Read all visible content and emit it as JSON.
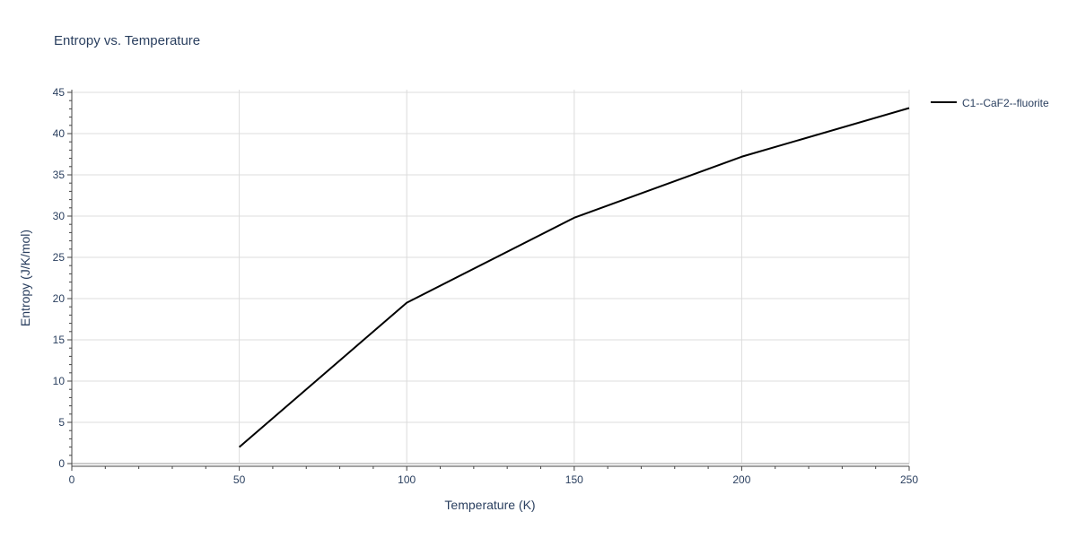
{
  "chart_data": {
    "type": "line",
    "title": "Entropy vs. Temperature",
    "xlabel": "Temperature (K)",
    "ylabel": "Entropy (J/K/mol)",
    "xlim": [
      0,
      250
    ],
    "ylim": [
      0,
      45
    ],
    "x_ticks": [
      0,
      50,
      100,
      150,
      200,
      250
    ],
    "y_ticks": [
      0,
      5,
      10,
      15,
      20,
      25,
      30,
      35,
      40,
      45
    ],
    "grid": true,
    "legend_position": "top-right",
    "series": [
      {
        "name": "C1--CaF2--fluorite",
        "color": "#000000",
        "x": [
          50,
          100,
          150,
          200,
          250
        ],
        "y": [
          2.0,
          19.5,
          29.8,
          37.2,
          43.1
        ]
      }
    ]
  }
}
